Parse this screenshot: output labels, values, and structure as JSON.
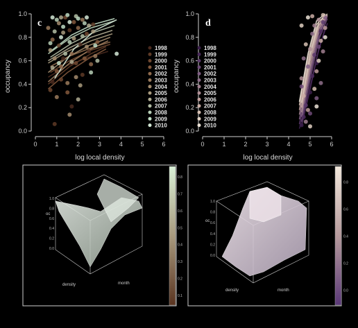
{
  "chart_data": [
    {
      "type": "scatter",
      "panel_letter": "c",
      "xlabel": "log local density",
      "ylabel": "occupancy",
      "xlim": [
        0,
        6
      ],
      "ylim": [
        0,
        1
      ],
      "xticks": [
        "0",
        "1",
        "2",
        "3",
        "4",
        "5",
        "6"
      ],
      "yticks": [
        "0.0",
        "0.2",
        "0.4",
        "0.6",
        "0.8",
        "1.0"
      ],
      "legend_position": "right",
      "series": [
        {
          "name": "1998",
          "color": "#4a2a1e",
          "points": [
            [
              0.8,
              0.42
            ],
            [
              1.3,
              0.62
            ],
            [
              2.1,
              0.74
            ],
            [
              1.7,
              0.21
            ],
            [
              2.5,
              0.68
            ]
          ],
          "curve": [
            [
              0.6,
              0.46
            ],
            [
              1.5,
              0.56
            ],
            [
              2.5,
              0.63
            ],
            [
              3.4,
              0.68
            ]
          ]
        },
        {
          "name": "1999",
          "color": "#5e3a26",
          "points": [
            [
              0.9,
              0.06
            ],
            [
              1.6,
              0.86
            ],
            [
              2.2,
              0.48
            ],
            [
              1.1,
              0.73
            ],
            [
              2.7,
              0.91
            ]
          ],
          "curve": [
            [
              0.6,
              0.4
            ],
            [
              1.6,
              0.55
            ],
            [
              2.6,
              0.66
            ],
            [
              3.3,
              0.72
            ]
          ]
        },
        {
          "name": "2000",
          "color": "#704830",
          "points": [
            [
              0.7,
              0.35
            ],
            [
              1.4,
              0.97
            ],
            [
              1.9,
              0.58
            ],
            [
              2.4,
              0.83
            ],
            [
              1.2,
              0.44
            ]
          ],
          "curve": [
            [
              0.7,
              0.5
            ],
            [
              1.6,
              0.6
            ],
            [
              2.6,
              0.69
            ],
            [
              3.5,
              0.74
            ]
          ]
        },
        {
          "name": "2001",
          "color": "#82583c",
          "points": [
            [
              1.0,
              0.51
            ],
            [
              1.8,
              0.93
            ],
            [
              2.3,
              0.62
            ],
            [
              1.5,
              0.33
            ],
            [
              2.9,
              0.76
            ]
          ],
          "curve": [
            [
              0.6,
              0.36
            ],
            [
              1.5,
              0.5
            ],
            [
              2.5,
              0.62
            ],
            [
              3.3,
              0.7
            ]
          ]
        },
        {
          "name": "2002",
          "color": "#8f6a4c",
          "points": [
            [
              0.8,
              0.78
            ],
            [
              1.2,
              0.55
            ],
            [
              2.0,
              0.88
            ],
            [
              2.6,
              0.57
            ],
            [
              1.7,
              0.66
            ]
          ],
          "curve": [
            [
              0.7,
              0.55
            ],
            [
              1.6,
              0.64
            ],
            [
              2.6,
              0.71
            ],
            [
              3.5,
              0.76
            ]
          ]
        },
        {
          "name": "2003",
          "color": "#9a7a5c",
          "points": [
            [
              0.6,
              0.88
            ],
            [
              1.5,
              0.41
            ],
            [
              2.2,
              0.95
            ],
            [
              1.0,
              0.29
            ],
            [
              2.8,
              0.64
            ]
          ],
          "curve": [
            [
              0.6,
              0.42
            ],
            [
              1.6,
              0.58
            ],
            [
              2.6,
              0.7
            ],
            [
              3.4,
              0.77
            ]
          ]
        },
        {
          "name": "2004",
          "color": "#a38b6d",
          "points": [
            [
              1.1,
              0.92
            ],
            [
              1.9,
              0.46
            ],
            [
              2.4,
              0.72
            ],
            [
              0.9,
              0.62
            ],
            [
              1.6,
              0.14
            ]
          ],
          "curve": [
            [
              0.6,
              0.5
            ],
            [
              1.5,
              0.63
            ],
            [
              2.5,
              0.73
            ],
            [
              3.5,
              0.8
            ]
          ]
        },
        {
          "name": "2005",
          "color": "#a99b7e",
          "points": [
            [
              0.7,
              0.69
            ],
            [
              1.3,
              0.84
            ],
            [
              2.1,
              0.39
            ],
            [
              2.7,
              0.85
            ],
            [
              1.8,
              0.79
            ]
          ],
          "curve": [
            [
              0.6,
              0.58
            ],
            [
              1.5,
              0.68
            ],
            [
              2.6,
              0.77
            ],
            [
              3.6,
              0.83
            ]
          ]
        },
        {
          "name": "2006",
          "color": "#b0ab92",
          "points": [
            [
              1.2,
              0.97
            ],
            [
              1.7,
              0.59
            ],
            [
              2.5,
              0.9
            ],
            [
              0.8,
              0.54
            ],
            [
              2.0,
              0.27
            ]
          ],
          "curve": [
            [
              0.6,
              0.6
            ],
            [
              1.6,
              0.71
            ],
            [
              2.6,
              0.8
            ],
            [
              3.6,
              0.86
            ]
          ]
        },
        {
          "name": "2007",
          "color": "#b3bea5",
          "points": [
            [
              0.9,
              0.85
            ],
            [
              1.4,
              0.66
            ],
            [
              2.2,
              0.81
            ],
            [
              1.9,
              0.98
            ],
            [
              2.9,
              0.6
            ]
          ],
          "curve": [
            [
              0.7,
              0.63
            ],
            [
              1.7,
              0.75
            ],
            [
              2.7,
              0.84
            ],
            [
              3.7,
              0.9
            ]
          ]
        },
        {
          "name": "2008",
          "color": "#b7cfb6",
          "points": [
            [
              1.0,
              0.95
            ],
            [
              1.6,
              0.76
            ],
            [
              2.3,
              0.92
            ],
            [
              0.7,
              0.75
            ],
            [
              2.6,
              0.5
            ]
          ],
          "curve": [
            [
              0.6,
              0.66
            ],
            [
              1.6,
              0.79
            ],
            [
              2.6,
              0.88
            ],
            [
              3.7,
              0.94
            ]
          ]
        },
        {
          "name": "2009",
          "color": "#c0dcc4",
          "points": [
            [
              1.3,
              0.89
            ],
            [
              2.0,
              0.96
            ],
            [
              1.1,
              0.58
            ],
            [
              2.8,
              0.73
            ],
            [
              1.5,
              0.99
            ]
          ],
          "curve": [
            [
              0.7,
              0.68
            ],
            [
              1.7,
              0.82
            ],
            [
              2.7,
              0.91
            ],
            [
              3.7,
              0.96
            ]
          ]
        },
        {
          "name": "2010",
          "color": "#d4e8d6",
          "points": [
            [
              0.8,
              0.97
            ],
            [
              1.6,
              0.93
            ],
            [
              2.4,
              0.97
            ],
            [
              3.8,
              0.66
            ],
            [
              1.2,
              0.8
            ]
          ],
          "curve": [
            [
              0.9,
              0.45
            ],
            [
              1.8,
              0.7
            ],
            [
              2.8,
              0.86
            ],
            [
              3.8,
              0.95
            ]
          ]
        }
      ]
    },
    {
      "type": "scatter",
      "panel_letter": "d",
      "xlabel": "log local density",
      "ylabel": "occupancy",
      "xlim": [
        0,
        6
      ],
      "ylim": [
        0,
        1
      ],
      "xticks": [
        "0",
        "1",
        "2",
        "3",
        "4",
        "5",
        "6"
      ],
      "yticks": [
        "0.0",
        "0.2",
        "0.4",
        "0.6",
        "0.8",
        "1.0"
      ],
      "legend_position": "left",
      "series": [
        {
          "name": "1998",
          "color": "#3a1e4a",
          "points": [
            [
              4.6,
              0.05
            ],
            [
              5.0,
              0.33
            ],
            [
              5.3,
              0.58
            ]
          ],
          "curve": [
            [
              4.5,
              0.02
            ],
            [
              4.9,
              0.3
            ],
            [
              5.3,
              0.62
            ],
            [
              5.7,
              0.88
            ]
          ]
        },
        {
          "name": "1999",
          "color": "#4b2a5c",
          "points": [
            [
              4.7,
              0.12
            ],
            [
              5.1,
              0.47
            ],
            [
              5.5,
              0.85
            ]
          ],
          "curve": [
            [
              4.6,
              0.04
            ],
            [
              5.0,
              0.36
            ],
            [
              5.4,
              0.7
            ],
            [
              5.8,
              0.92
            ]
          ]
        },
        {
          "name": "2000",
          "color": "#5c3a6c",
          "points": [
            [
              4.8,
              0.22
            ],
            [
              5.2,
              0.65
            ],
            [
              5.6,
              0.93
            ]
          ],
          "curve": [
            [
              4.5,
              0.06
            ],
            [
              4.9,
              0.4
            ],
            [
              5.3,
              0.74
            ],
            [
              5.7,
              0.95
            ]
          ]
        },
        {
          "name": "2001",
          "color": "#6e4a78",
          "points": [
            [
              4.6,
              0.38
            ],
            [
              5.0,
              0.15
            ],
            [
              5.4,
              0.72
            ]
          ],
          "curve": [
            [
              4.6,
              0.08
            ],
            [
              5.0,
              0.44
            ],
            [
              5.4,
              0.78
            ],
            [
              5.8,
              0.96
            ]
          ]
        },
        {
          "name": "2002",
          "color": "#7e5c82",
          "points": [
            [
              4.9,
              0.55
            ],
            [
              5.3,
              0.28
            ],
            [
              5.7,
              0.97
            ]
          ],
          "curve": [
            [
              4.5,
              0.1
            ],
            [
              4.9,
              0.46
            ],
            [
              5.3,
              0.8
            ],
            [
              5.7,
              0.97
            ]
          ]
        },
        {
          "name": "2003",
          "color": "#8e6e8a",
          "points": [
            [
              4.7,
              0.62
            ],
            [
              5.1,
              0.83
            ],
            [
              5.5,
              0.41
            ]
          ],
          "curve": [
            [
              4.6,
              0.12
            ],
            [
              5.0,
              0.5
            ],
            [
              5.4,
              0.83
            ],
            [
              5.8,
              0.98
            ]
          ]
        },
        {
          "name": "2004",
          "color": "#a07f8f",
          "points": [
            [
              4.8,
              0.08
            ],
            [
              5.2,
              0.9
            ],
            [
              5.6,
              0.68
            ]
          ],
          "curve": [
            [
              4.5,
              0.14
            ],
            [
              4.9,
              0.52
            ],
            [
              5.3,
              0.85
            ],
            [
              5.7,
              0.98
            ]
          ]
        },
        {
          "name": "2005",
          "color": "#b08f96",
          "points": [
            [
              4.6,
              0.45
            ],
            [
              5.0,
              0.7
            ],
            [
              5.4,
              0.95
            ]
          ],
          "curve": [
            [
              4.6,
              0.16
            ],
            [
              5.0,
              0.55
            ],
            [
              5.4,
              0.87
            ],
            [
              5.8,
              0.99
            ]
          ]
        },
        {
          "name": "2006",
          "color": "#bf9e9c",
          "points": [
            [
              4.9,
              0.18
            ],
            [
              5.3,
              0.51
            ],
            [
              5.7,
              0.88
            ]
          ],
          "curve": [
            [
              4.5,
              0.18
            ],
            [
              4.9,
              0.58
            ],
            [
              5.3,
              0.88
            ],
            [
              5.7,
              0.99
            ]
          ]
        },
        {
          "name": "2007",
          "color": "#cbaea6",
          "points": [
            [
              4.7,
              0.3
            ],
            [
              5.1,
              0.98
            ],
            [
              5.5,
              0.77
            ]
          ],
          "curve": [
            [
              4.6,
              0.2
            ],
            [
              5.0,
              0.6
            ],
            [
              5.4,
              0.9
            ],
            [
              5.8,
              0.99
            ]
          ]
        },
        {
          "name": "2008",
          "color": "#d6bfb2",
          "points": [
            [
              4.8,
              0.74
            ],
            [
              5.2,
              0.36
            ],
            [
              5.6,
              0.99
            ]
          ],
          "curve": [
            [
              4.5,
              0.22
            ],
            [
              4.9,
              0.62
            ],
            [
              5.3,
              0.91
            ],
            [
              5.7,
              0.99
            ]
          ]
        },
        {
          "name": "2009",
          "color": "#e0d0c2",
          "points": [
            [
              4.6,
              0.9
            ],
            [
              5.0,
              0.04
            ],
            [
              5.4,
              0.6
            ]
          ],
          "curve": [
            [
              4.6,
              0.24
            ],
            [
              5.0,
              0.65
            ],
            [
              5.4,
              0.93
            ],
            [
              5.8,
              1.0
            ]
          ]
        },
        {
          "name": "2010",
          "color": "#ebe2d6",
          "points": [
            [
              4.9,
              0.97
            ],
            [
              5.3,
              0.21
            ],
            [
              5.7,
              0.8
            ]
          ],
          "curve": [
            [
              4.5,
              0.25
            ],
            [
              4.9,
              0.66
            ],
            [
              5.3,
              0.94
            ],
            [
              5.7,
              1.0
            ]
          ]
        }
      ]
    },
    {
      "type": "surface",
      "zlabel": "oc",
      "xlabel": "density",
      "ylabel": "month",
      "zticks": [
        "1.0",
        "0.8",
        "0.6",
        "0.4",
        "0.2",
        "0.0"
      ],
      "colorbar_ticks": [
        "0.8",
        "0.7",
        "0.6",
        "0.5",
        "0.4",
        "0.3",
        "0.2",
        "0.1"
      ],
      "colorbar_colors": [
        "#d8f0d6",
        "#5a3420"
      ]
    },
    {
      "type": "surface",
      "zlabel": "oc",
      "xlabel": "density",
      "ylabel": "month",
      "zticks": [
        "1.0",
        "0.8",
        "0.6",
        "0.4",
        "0.2",
        "0.0"
      ],
      "colorbar_ticks": [
        "0.8",
        "0.6",
        "0.4",
        "0.2",
        "0.0"
      ],
      "colorbar_colors": [
        "#f2e8dc",
        "#5a3878"
      ]
    }
  ]
}
